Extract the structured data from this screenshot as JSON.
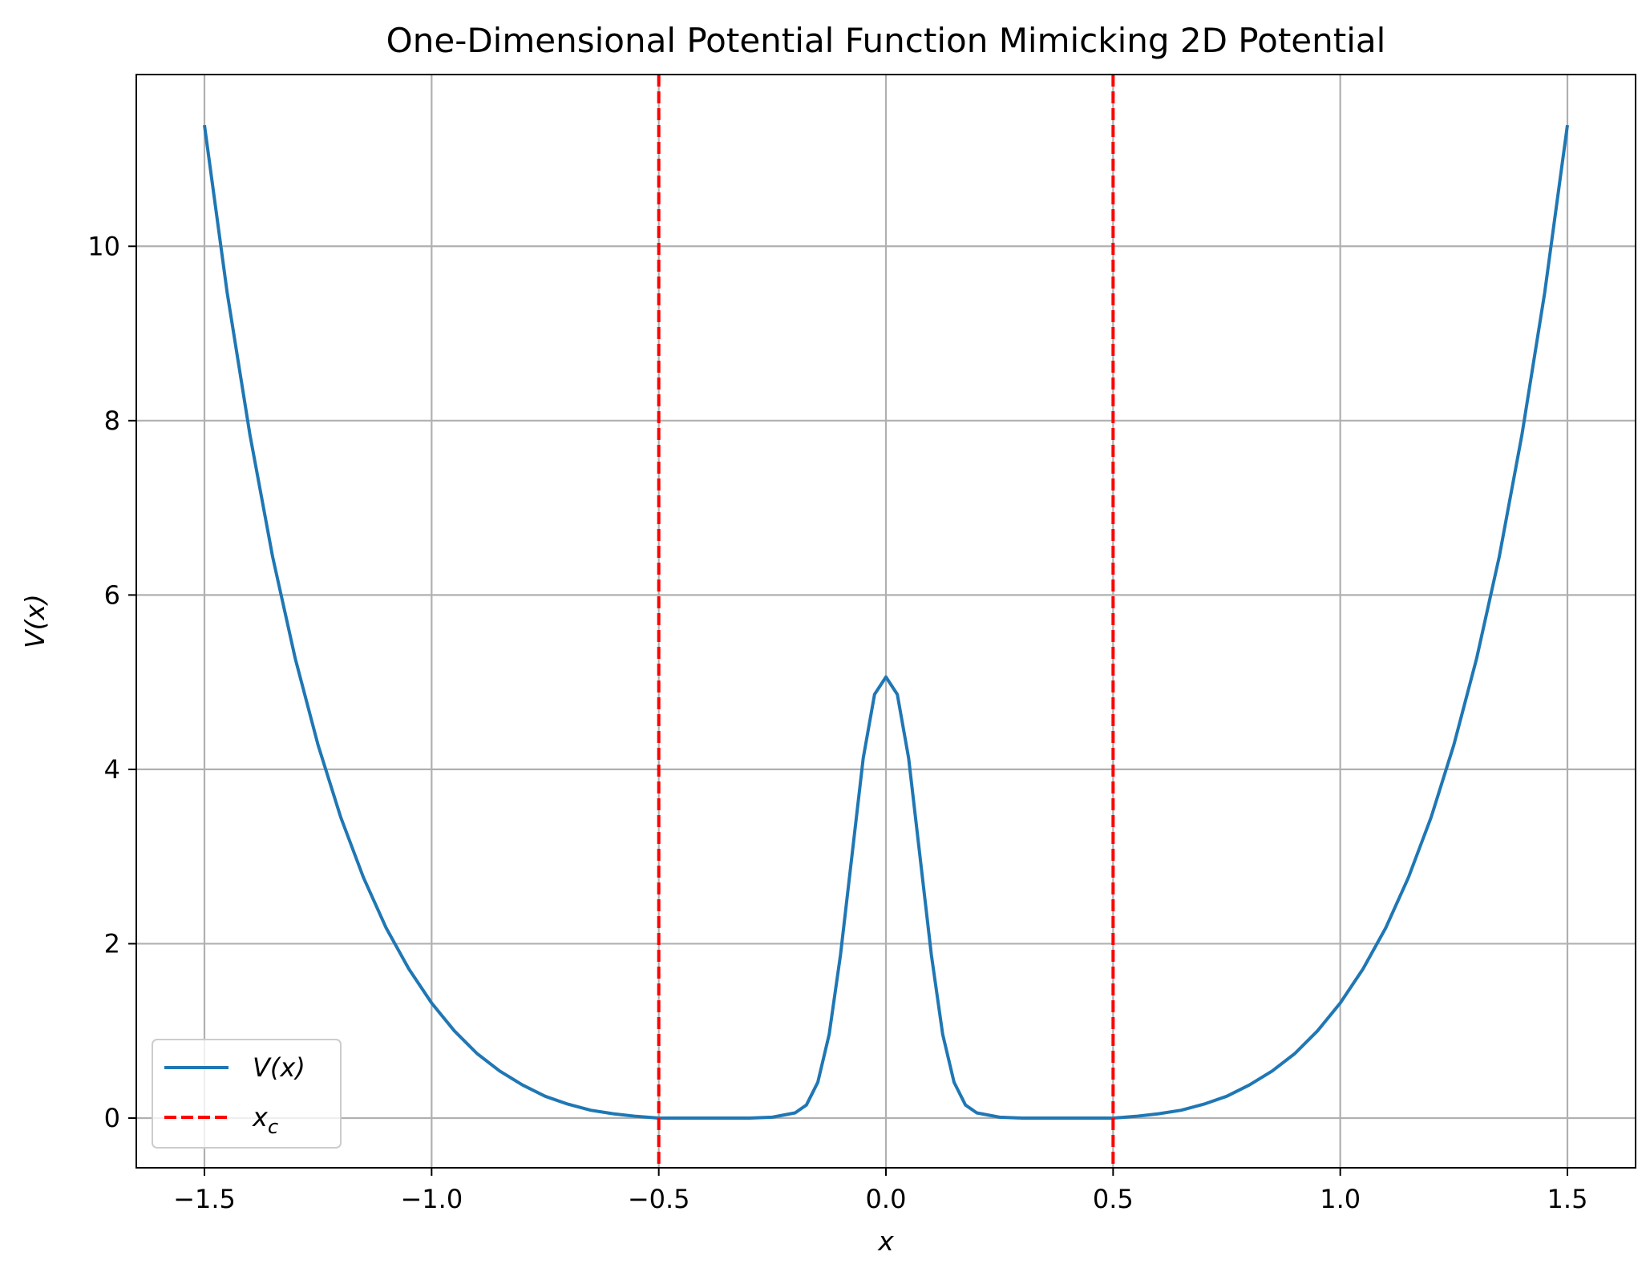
{
  "chart_data": {
    "type": "line",
    "title": "One-Dimensional Potential Function Mimicking 2D Potential",
    "xlabel": "x",
    "ylabel": "V(x)",
    "xlim": [
      -1.65,
      1.65
    ],
    "ylim": [
      -0.57,
      11.97
    ],
    "xticks": [
      -1.5,
      -1.0,
      -0.5,
      0.0,
      0.5,
      1.0,
      1.5
    ],
    "xtick_labels": [
      "−1.5",
      "−1.0",
      "−0.5",
      "0.0",
      "0.5",
      "1.0",
      "1.5"
    ],
    "yticks": [
      0,
      2,
      4,
      6,
      8,
      10
    ],
    "ytick_labels": [
      "0",
      "2",
      "4",
      "6",
      "8",
      "10"
    ],
    "grid": true,
    "legend_position": "lower-left",
    "series": [
      {
        "name": "V(x)",
        "style": "solid",
        "color": "#1f77b4",
        "x": [
          -1.5,
          -1.45,
          -1.4,
          -1.35,
          -1.3,
          -1.25,
          -1.2,
          -1.15,
          -1.1,
          -1.05,
          -1.0,
          -0.95,
          -0.9,
          -0.85,
          -0.8,
          -0.75,
          -0.7,
          -0.65,
          -0.6,
          -0.55,
          -0.5,
          -0.45,
          -0.4,
          -0.35,
          -0.3,
          -0.25,
          -0.2,
          -0.175,
          -0.15,
          -0.125,
          -0.1,
          -0.075,
          -0.05,
          -0.025,
          0.0,
          0.025,
          0.05,
          0.075,
          0.1,
          0.125,
          0.15,
          0.175,
          0.2,
          0.25,
          0.3,
          0.35,
          0.4,
          0.45,
          0.5,
          0.55,
          0.6,
          0.65,
          0.7,
          0.75,
          0.8,
          0.85,
          0.9,
          0.95,
          1.0,
          1.05,
          1.1,
          1.15,
          1.2,
          1.25,
          1.3,
          1.35,
          1.4,
          1.45,
          1.5
        ],
        "y": [
          11.39,
          9.47,
          7.84,
          6.44,
          5.27,
          4.28,
          3.45,
          2.76,
          2.18,
          1.71,
          1.32,
          1.0,
          0.74,
          0.54,
          0.38,
          0.25,
          0.16,
          0.09,
          0.05,
          0.02,
          0.0,
          0.0,
          0.0,
          0.0,
          0.0,
          0.01,
          0.06,
          0.15,
          0.41,
          0.96,
          1.87,
          3.0,
          4.13,
          4.86,
          5.06,
          4.86,
          4.13,
          3.0,
          1.87,
          0.96,
          0.41,
          0.15,
          0.06,
          0.01,
          0.0,
          0.0,
          0.0,
          0.0,
          0.0,
          0.02,
          0.05,
          0.09,
          0.16,
          0.25,
          0.38,
          0.54,
          0.74,
          1.0,
          1.32,
          1.71,
          2.18,
          2.76,
          3.45,
          4.28,
          5.27,
          6.44,
          7.84,
          9.47,
          11.39
        ]
      },
      {
        "name": "x_c",
        "style": "dashed",
        "color": "#ff0000",
        "vlines": [
          -0.5,
          0.5
        ]
      }
    ]
  }
}
